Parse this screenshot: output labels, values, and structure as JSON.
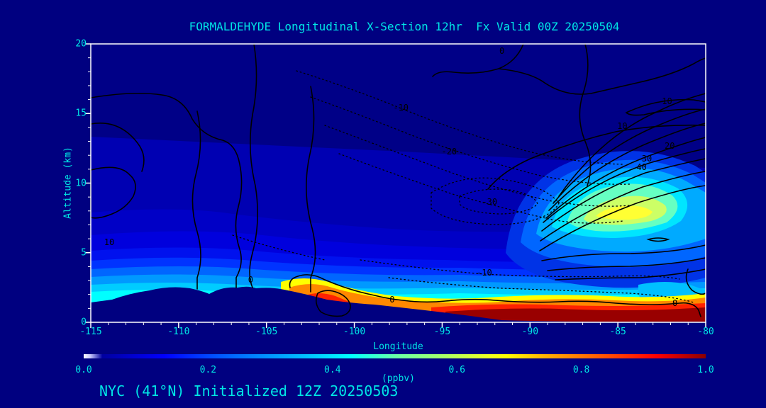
{
  "title": "FORMALDEHYDE Longitudinal X-Section 12hr  Fx Valid 00Z 20250504",
  "footer": "NYC (41°N) Initialized 12Z 20250503",
  "colors": {
    "page_background": "#000080",
    "text": "#00e6e6",
    "axis_frame": "#ffffff",
    "contour_line": "#000000"
  },
  "chart_data": {
    "type": "heatmap",
    "subtype": "filled-contour longitudinal cross-section with overlaid solid/dotted line contours",
    "title": "FORMALDEHYDE Longitudinal X-Section 12hr  Fx Valid 00Z 20250504",
    "annotation": "NYC (41°N) Initialized 12Z 20250503",
    "xlabel": "Longitude",
    "ylabel": "Altitude (km)",
    "xlim": [
      -115,
      -80
    ],
    "ylim": [
      0,
      20
    ],
    "x_ticks": [
      -115,
      -110,
      -105,
      -100,
      -95,
      -90,
      -85,
      -80
    ],
    "x_minor_step": 1,
    "y_ticks": [
      0,
      5,
      10,
      15,
      20
    ],
    "y_minor_step": 1,
    "grid": false,
    "legend_position": "none",
    "colorbar": {
      "label": "(ppbv)",
      "range": [
        0.0,
        1.0
      ],
      "ticks": [
        "0.0",
        "0.2",
        "0.4",
        "0.6",
        "0.8",
        "1.0"
      ],
      "stops": [
        [
          "0%",
          "#ffffff"
        ],
        [
          "1%",
          "#ccccff"
        ],
        [
          "3%",
          "#0000a0"
        ],
        [
          "13%",
          "#0000ff"
        ],
        [
          "21%",
          "#0050ff"
        ],
        [
          "29%",
          "#0090ff"
        ],
        [
          "36%",
          "#00c4ff"
        ],
        [
          "43%",
          "#00ffff"
        ],
        [
          "50%",
          "#66ffaa"
        ],
        [
          "58%",
          "#aaff66"
        ],
        [
          "65%",
          "#eeff22"
        ],
        [
          "68%",
          "#ffff00"
        ],
        [
          "74%",
          "#ffb400"
        ],
        [
          "80%",
          "#ff7800"
        ],
        [
          "86%",
          "#ff3c00"
        ],
        [
          "92%",
          "#ff0000"
        ],
        [
          "100%",
          "#8b0000"
        ]
      ]
    },
    "line_contours": {
      "solid_values_labeled": [
        0,
        10,
        20,
        30,
        40
      ],
      "dotted_values_labeled": [
        -10,
        -20,
        -30
      ],
      "interval": 10
    },
    "contour_labels": [
      {
        "text": "10",
        "lon": -113.95,
        "alt": 5.75,
        "line": "solid"
      },
      {
        "text": "0",
        "lon": -105.9,
        "alt": 3.05,
        "line": "solid"
      },
      {
        "text": "0",
        "lon": -97.85,
        "alt": 1.65,
        "line": "solid"
      },
      {
        "text": "-10",
        "lon": -97.35,
        "alt": 15.4,
        "line": "dotted"
      },
      {
        "text": "-20",
        "lon": -94.6,
        "alt": 12.25,
        "line": "dotted"
      },
      {
        "text": "-30",
        "lon": -92.3,
        "alt": 8.65,
        "line": "dotted"
      },
      {
        "text": "-10",
        "lon": -92.6,
        "alt": 3.55,
        "line": "dotted"
      },
      {
        "text": "0",
        "lon": -91.6,
        "alt": 19.5,
        "line": "solid"
      },
      {
        "text": "10",
        "lon": -84.75,
        "alt": 14.1,
        "line": "solid"
      },
      {
        "text": "10",
        "lon": -82.2,
        "alt": 15.9,
        "line": "solid"
      },
      {
        "text": "20",
        "lon": -82.05,
        "alt": 12.65,
        "line": "solid"
      },
      {
        "text": "30",
        "lon": -83.35,
        "alt": 11.75,
        "line": "solid"
      },
      {
        "text": "40",
        "lon": -83.65,
        "alt": 11.15,
        "line": "solid"
      },
      {
        "text": "0",
        "lon": -81.75,
        "alt": 1.35,
        "line": "solid"
      }
    ],
    "filled_field_features_estimated": [
      {
        "name": "surface plume (orange to dark red)",
        "lon_range": [
          -103,
          -80
        ],
        "alt_range": [
          0,
          2
        ],
        "value_ppbv": [
          0.7,
          1.0
        ]
      },
      {
        "name": "boundary-layer band (cyan)",
        "lon_range": [
          -115,
          -96
        ],
        "alt_range": [
          1.5,
          5
        ],
        "value_ppbv": [
          0.3,
          0.45
        ]
      },
      {
        "name": "elevated hotspot (yellow-green)",
        "lon": -85,
        "alt": 8,
        "value_ppbv": 0.65
      },
      {
        "name": "mid troposphere (medium blue)",
        "alt_range": [
          5,
          13
        ],
        "value_ppbv": [
          0.1,
          0.3
        ]
      },
      {
        "name": "upper troposphere (dark blue)",
        "alt_range": [
          13,
          20
        ],
        "value_ppbv": [
          0.0,
          0.1
        ]
      },
      {
        "name": "terrain mask (navy, mountains on left, low on right)",
        "lon_range": [
          -115,
          -80
        ],
        "alt_range": [
          0,
          1.6
        ]
      }
    ]
  }
}
